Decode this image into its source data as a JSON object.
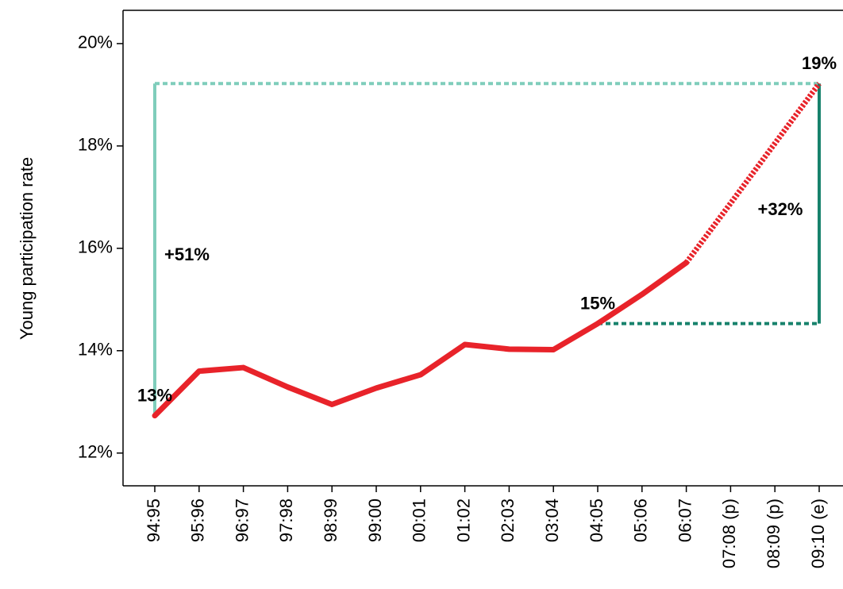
{
  "chart_data": {
    "type": "line",
    "y_axis_label": "Young participation rate",
    "categories": [
      "94:95",
      "95:96",
      "96:97",
      "97:98",
      "98:99",
      "99:00",
      "00:01",
      "01:02",
      "02:03",
      "03:04",
      "04:05",
      "05:06",
      "06:07",
      "07:08 (p)",
      "08:09 (p)",
      "09:10 (e)"
    ],
    "series": [
      {
        "color": "#e8232a",
        "style": "solid",
        "values": [
          12.73,
          13.6,
          13.67,
          13.29,
          12.95,
          13.27,
          13.53,
          14.12,
          14.03,
          14.02,
          14.53,
          15.1,
          15.72,
          null,
          null,
          null
        ],
        "value_labels": [
          "13%",
          null,
          null,
          null,
          null,
          null,
          null,
          null,
          null,
          null,
          "15%",
          null,
          null,
          null,
          null,
          null
        ]
      },
      {
        "color": "#e8232a",
        "style": "dotted",
        "values": [
          null,
          null,
          null,
          null,
          null,
          null,
          null,
          null,
          null,
          null,
          null,
          null,
          15.72,
          16.88,
          18.05,
          19.22
        ],
        "value_labels": [
          null,
          null,
          null,
          null,
          null,
          null,
          null,
          null,
          null,
          null,
          null,
          null,
          null,
          null,
          null,
          "19%"
        ]
      }
    ],
    "annotations": [
      {
        "text": "+51%",
        "color": "#7fcdbb"
      },
      {
        "text": "+32%",
        "color": "#17826c"
      }
    ],
    "ylim": [
      11.36,
      20.65
    ],
    "yticks": [
      {
        "value": 12,
        "label": "12%"
      },
      {
        "value": 14,
        "label": "14%"
      },
      {
        "value": 16,
        "label": "16%"
      },
      {
        "value": 18,
        "label": "18%"
      },
      {
        "value": 20,
        "label": "20%"
      }
    ]
  }
}
